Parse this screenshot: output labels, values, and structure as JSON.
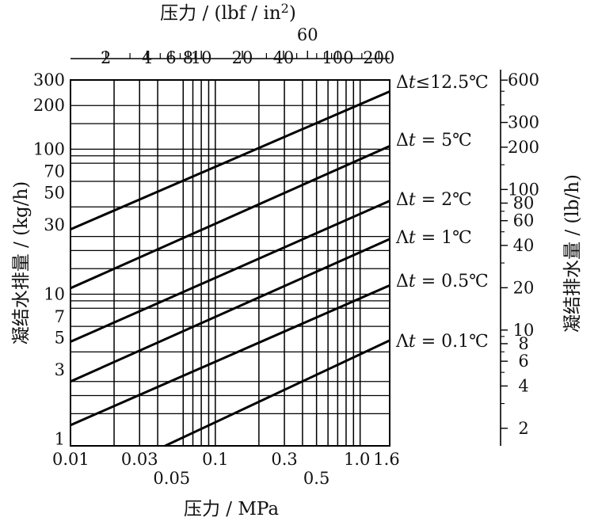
{
  "chart_data": {
    "type": "line",
    "x_scale": "log",
    "y_scale": "log",
    "x_bottom": {
      "label": "压力 / MPa",
      "range": [
        0.01,
        1.6
      ],
      "ticks_row1": [
        {
          "value": 0.01,
          "label": "0.01"
        },
        {
          "value": 0.03,
          "label": "0.03"
        },
        {
          "value": 0.1,
          "label": "0.1"
        },
        {
          "value": 0.3,
          "label": "0.3"
        },
        {
          "value": 1.0,
          "label": "1.0"
        },
        {
          "value": 1.6,
          "label": "1.6"
        }
      ],
      "ticks_row2": [
        {
          "value": 0.05,
          "label": "0.05"
        },
        {
          "value": 0.5,
          "label": "0.5"
        }
      ],
      "gridlines": [
        0.02,
        0.03,
        0.04,
        0.06,
        0.07,
        0.08,
        0.09,
        0.1,
        0.2,
        0.3,
        0.4,
        0.5,
        0.6,
        0.7,
        0.8,
        0.9,
        1.0,
        1.6
      ]
    },
    "x_top": {
      "label": "压力 / (lbf / in",
      "label_sup": "2",
      "label_close": ")",
      "ticks": [
        {
          "value": 2,
          "label": "2"
        },
        {
          "value": 4,
          "label": "4"
        },
        {
          "value": 6,
          "label": "6"
        },
        {
          "value": 8,
          "label": "8"
        },
        {
          "value": 10,
          "label": "10"
        },
        {
          "value": 20,
          "label": "20"
        },
        {
          "value": 40,
          "label": "40"
        },
        {
          "value": 60,
          "label": "60",
          "raised": true
        },
        {
          "value": 100,
          "label": "100"
        },
        {
          "value": 200,
          "label": "200"
        }
      ],
      "minor_ticks": [
        3,
        5,
        7,
        9,
        30,
        50,
        70,
        80,
        90,
        150
      ]
    },
    "y_left": {
      "label": "凝结水排量 / (kg/h)",
      "range": [
        0.9,
        300
      ],
      "ticks": [
        {
          "value": 1,
          "label": "1"
        },
        {
          "value": 3,
          "label": "3"
        },
        {
          "value": 5,
          "label": "5"
        },
        {
          "value": 7,
          "label": "7"
        },
        {
          "value": 10,
          "label": "10"
        },
        {
          "value": 30,
          "label": "30"
        },
        {
          "value": 50,
          "label": "50"
        },
        {
          "value": 70,
          "label": "70"
        },
        {
          "value": 100,
          "label": "100"
        },
        {
          "value": 200,
          "label": "200"
        },
        {
          "value": 300,
          "label": "300"
        }
      ],
      "gridlines": [
        1.5,
        2,
        2.5,
        4,
        6,
        8,
        9,
        10,
        15,
        20,
        25,
        40,
        60,
        80,
        90,
        100,
        150,
        200
      ]
    },
    "y_right": {
      "label": "凝结排水量 / (lb/h)",
      "ticks": [
        {
          "value": 2,
          "label": "2"
        },
        {
          "value": 4,
          "label": "4"
        },
        {
          "value": 6,
          "label": "6"
        },
        {
          "value": 8,
          "label": "8"
        },
        {
          "value": 10,
          "label": "10"
        },
        {
          "value": 20,
          "label": "20"
        },
        {
          "value": 40,
          "label": "40"
        },
        {
          "value": 60,
          "label": "60"
        },
        {
          "value": 80,
          "label": "80"
        },
        {
          "value": 100,
          "label": "100"
        },
        {
          "value": 200,
          "label": "200"
        },
        {
          "value": 300,
          "label": "300"
        },
        {
          "value": 600,
          "label": "600"
        }
      ]
    },
    "series": [
      {
        "name": "Δt ≤ 12.5 ℃",
        "label": "Δ𝑡≤12.5℃",
        "points": [
          [
            0.01,
            28
          ],
          [
            1.6,
            250
          ]
        ]
      },
      {
        "name": "Δt = 5 ℃",
        "label": "Δ𝑡 = 5℃",
        "points": [
          [
            0.01,
            11
          ],
          [
            1.6,
            105
          ]
        ]
      },
      {
        "name": "Δt = 2 ℃",
        "label": "Δ𝑡 = 2℃",
        "points": [
          [
            0.01,
            4.7
          ],
          [
            1.6,
            44
          ]
        ]
      },
      {
        "name": "Δt = 1 ℃",
        "label": "Λ𝑡 = 1℃",
        "points": [
          [
            0.01,
            2.5
          ],
          [
            1.6,
            24
          ]
        ]
      },
      {
        "name": "Δt = 0.5 ℃",
        "label": "Δ𝑡 = 0.5℃",
        "points": [
          [
            0.01,
            1.25
          ],
          [
            1.6,
            11.5
          ]
        ]
      },
      {
        "name": "Δt = 0.1 ℃",
        "label": "Λ𝑡 = 0.1℃",
        "points": [
          [
            0.045,
            0.9
          ],
          [
            1.6,
            4.8
          ]
        ]
      }
    ]
  }
}
